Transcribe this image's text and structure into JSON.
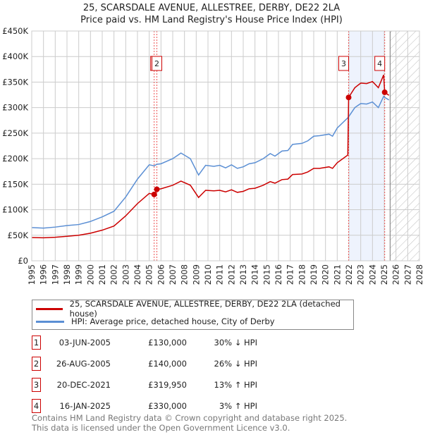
{
  "title": "25, SCARSDALE AVENUE, ALLESTREE, DERBY, DE22 2LA",
  "subtitle": "Price paid vs. HM Land Registry's House Price Index (HPI)",
  "colors": {
    "property": "#cc0000",
    "hpi": "#5b8fd4",
    "shade": "#eef3fd"
  },
  "chart_data": {
    "type": "line",
    "title": "25, SCARSDALE AVENUE, ALLESTREE, DERBY, DE22 2LA",
    "subtitle": "Price paid vs. HM Land Registry's House Price Index (HPI)",
    "xlim": [
      1995,
      2028
    ],
    "ylim": [
      0,
      450000
    ],
    "yticks": [
      {
        "v": 0,
        "l": "£0"
      },
      {
        "v": 50000,
        "l": "£50K"
      },
      {
        "v": 100000,
        "l": "£100K"
      },
      {
        "v": 150000,
        "l": "£150K"
      },
      {
        "v": 200000,
        "l": "£200K"
      },
      {
        "v": 250000,
        "l": "£250K"
      },
      {
        "v": 300000,
        "l": "£300K"
      },
      {
        "v": 350000,
        "l": "£350K"
      },
      {
        "v": 400000,
        "l": "£400K"
      },
      {
        "v": 450000,
        "l": "£450K"
      }
    ],
    "xticks": [
      "1995",
      "1996",
      "1997",
      "1998",
      "1999",
      "2000",
      "2001",
      "2002",
      "2003",
      "2004",
      "2005",
      "2006",
      "2007",
      "2008",
      "2009",
      "2010",
      "2011",
      "2012",
      "2013",
      "2014",
      "2015",
      "2016",
      "2017",
      "2018",
      "2019",
      "2020",
      "2021",
      "2022",
      "2023",
      "2024",
      "2025",
      "2026",
      "2027",
      "2028"
    ],
    "x": [
      1995,
      1996,
      1997,
      1998,
      1999,
      2000,
      2001,
      2002,
      2003,
      2004,
      2005,
      2005.42,
      2005.65,
      2006,
      2007,
      2007.7,
      2008.5,
      2009.2,
      2009.8,
      2010.5,
      2011,
      2011.5,
      2012,
      2012.5,
      2013,
      2013.5,
      2014,
      2014.7,
      2015.3,
      2015.7,
      2016.3,
      2016.8,
      2017.2,
      2018,
      2018.5,
      2019,
      2019.5,
      2020.3,
      2020.6,
      2021,
      2021.9,
      2021.97,
      2022.5,
      2023,
      2023.5,
      2024,
      2024.5,
      2024.95,
      2025.04,
      2025.4
    ],
    "series": [
      {
        "name": "25, SCARSDALE AVENUE, ALLESTREE, DERBY, DE22 2LA (detached house)",
        "color": "#cc0000",
        "values": [
          45500,
          45000,
          46000,
          48000,
          50000,
          54000,
          60000,
          68000,
          88000,
          112000,
          132000,
          130000,
          140000,
          141000,
          148000,
          156000,
          148000,
          124000,
          138000,
          137000,
          138000,
          135000,
          139000,
          134000,
          136000,
          141000,
          142000,
          148000,
          155000,
          152000,
          159000,
          160000,
          169000,
          170000,
          174000,
          181000,
          181000,
          184000,
          181000,
          192000,
          207000,
          319950,
          339000,
          348000,
          347000,
          351000,
          339000,
          364000,
          330000,
          324000
        ]
      },
      {
        "name": "HPI: Average price, detached house, City of Derby",
        "color": "#5b8fd4",
        "values": [
          65000,
          64000,
          66000,
          69000,
          71000,
          77000,
          86000,
          97000,
          125000,
          160000,
          188000,
          186000,
          189000,
          190000,
          200000,
          211000,
          200000,
          168000,
          187000,
          185000,
          187000,
          182000,
          188000,
          181000,
          184000,
          190000,
          192000,
          200000,
          210000,
          205000,
          215000,
          216000,
          228000,
          230000,
          235000,
          244000,
          245000,
          248000,
          244000,
          260000,
          280000,
          282000,
          300000,
          308000,
          307000,
          311000,
          300000,
          322000,
          320000,
          315000
        ]
      }
    ],
    "shaded_range": [
      2021.97,
      2025.04
    ],
    "forecast_from": 2025.5,
    "sales": [
      {
        "n": "1",
        "date": "03-JUN-2005",
        "x": 2005.42,
        "price": 130000,
        "price_label": "£130,000",
        "hpi": "30% ↓ HPI"
      },
      {
        "n": "2",
        "date": "26-AUG-2005",
        "x": 2005.65,
        "price": 140000,
        "price_label": "£140,000",
        "hpi": "26% ↓ HPI"
      },
      {
        "n": "3",
        "date": "20-DEC-2021",
        "x": 2021.97,
        "price": 319950,
        "price_label": "£319,950",
        "hpi": "13% ↑ HPI"
      },
      {
        "n": "4",
        "date": "16-JAN-2025",
        "x": 2025.04,
        "price": 330000,
        "price_label": "£330,000",
        "hpi": "3% ↑ HPI"
      }
    ]
  },
  "legend": {
    "property": "25, SCARSDALE AVENUE, ALLESTREE, DERBY, DE22 2LA (detached house)",
    "hpi": "HPI: Average price, detached house, City of Derby"
  },
  "footer": [
    "Contains HM Land Registry data © Crown copyright and database right 2025.",
    "This data is licensed under the Open Government Licence v3.0."
  ]
}
